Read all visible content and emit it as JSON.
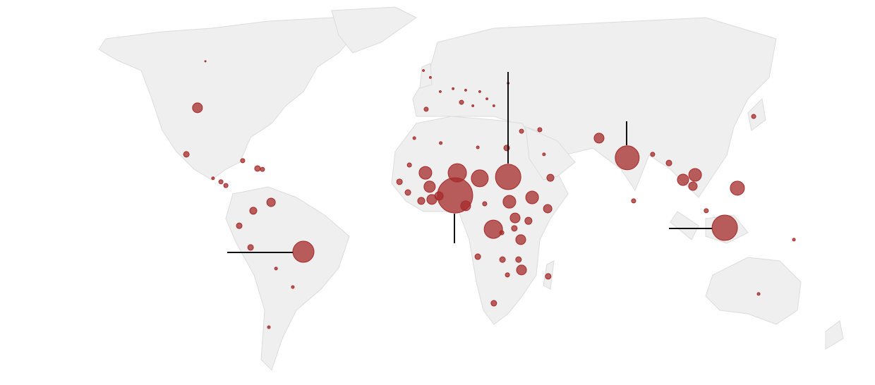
{
  "chart_data": {
    "type": "bubble",
    "color": "#a52a2a",
    "bubbles": [
      {
        "lon": -94.9,
        "lat": 39.3,
        "value": 49
      },
      {
        "lon": -99.4,
        "lat": 23.2,
        "value": 16
      },
      {
        "lon": 9.4,
        "lat": 9.0,
        "value": 625
      },
      {
        "lon": -52,
        "lat": -10.5,
        "value": 225
      },
      {
        "lon": 79.1,
        "lat": 22.0,
        "value": 289
      },
      {
        "lon": 118.6,
        "lat": -2.2,
        "value": 324
      },
      {
        "lon": 30.9,
        "lat": 15.4,
        "value": 324
      },
      {
        "lon": 40.6,
        "lat": 8.3,
        "value": 81
      },
      {
        "lon": 10.3,
        "lat": 16.8,
        "value": 169
      },
      {
        "lon": 19.4,
        "lat": 14.9,
        "value": 144
      },
      {
        "lon": -2.6,
        "lat": 16.8,
        "value": 81
      },
      {
        "lon": -0.9,
        "lat": 12.0,
        "value": 64
      },
      {
        "lon": 24.9,
        "lat": -2.7,
        "value": 169
      },
      {
        "lon": 31.4,
        "lat": 6.8,
        "value": 81
      },
      {
        "lon": 13.7,
        "lat": 5.4,
        "value": 49
      },
      {
        "lon": 33.7,
        "lat": 1.2,
        "value": 49
      },
      {
        "lon": 36,
        "lat": -6.3,
        "value": 49
      },
      {
        "lon": 39.1,
        "lat": 0.2,
        "value": 25
      },
      {
        "lon": 46.9,
        "lat": 4.4,
        "value": 36
      },
      {
        "lon": 48,
        "lat": 15.1,
        "value": 25
      },
      {
        "lon": 36.3,
        "lat": -16.8,
        "value": 49
      },
      {
        "lon": 35.1,
        "lat": -13.2,
        "value": 16
      },
      {
        "lon": 28.6,
        "lat": -13.2,
        "value": 16
      },
      {
        "lon": 18.6,
        "lat": -12.2,
        "value": 16
      },
      {
        "lon": 30.6,
        "lat": -18.5,
        "value": 9
      },
      {
        "lon": 25.1,
        "lat": -28.3,
        "value": 16
      },
      {
        "lon": 47.1,
        "lat": -19,
        "value": 16
      },
      {
        "lon": 21.4,
        "lat": 6.1,
        "value": 9
      },
      {
        "lon": 0,
        "lat": 7.6,
        "value": 49
      },
      {
        "lon": -4.3,
        "lat": 7.1,
        "value": 25
      },
      {
        "lon": 2.9,
        "lat": 8.8,
        "value": 36
      },
      {
        "lon": -9.7,
        "lat": 10,
        "value": 16
      },
      {
        "lon": -13.1,
        "lat": 13.7,
        "value": 16
      },
      {
        "lon": -9.1,
        "lat": 19.5,
        "value": 9
      },
      {
        "lon": 30.3,
        "lat": 25.4,
        "value": 16
      },
      {
        "lon": 67.7,
        "lat": 28.8,
        "value": 49
      },
      {
        "lon": 106.6,
        "lat": 16.1,
        "value": 81
      },
      {
        "lon": 101.7,
        "lat": 14.4,
        "value": 64
      },
      {
        "lon": 105.7,
        "lat": 12.2,
        "value": 36
      },
      {
        "lon": 123.7,
        "lat": 11.5,
        "value": 100
      },
      {
        "lon": 96,
        "lat": 20.2,
        "value": 16
      },
      {
        "lon": 89.4,
        "lat": 23.2,
        "value": 9
      },
      {
        "lon": 130.3,
        "lat": 36.3,
        "value": 9
      },
      {
        "lon": 81.7,
        "lat": 7.1,
        "value": 9
      },
      {
        "lon": 111.1,
        "lat": 3.7,
        "value": 9
      },
      {
        "lon": 132.3,
        "lat": -25.1,
        "value": 4
      },
      {
        "lon": 146.6,
        "lat": -6.3,
        "value": 4
      },
      {
        "lon": -65.1,
        "lat": 6.6,
        "value": 36
      },
      {
        "lon": -72.3,
        "lat": 3.7,
        "value": 25
      },
      {
        "lon": -78,
        "lat": -1.5,
        "value": 16
      },
      {
        "lon": -73.4,
        "lat": -9,
        "value": 16
      },
      {
        "lon": -63.1,
        "lat": -16.3,
        "value": 4
      },
      {
        "lon": -56.3,
        "lat": -22.7,
        "value": 4
      },
      {
        "lon": -66,
        "lat": -36.6,
        "value": 4
      },
      {
        "lon": -70.6,
        "lat": 18.3,
        "value": 16
      },
      {
        "lon": -76.6,
        "lat": 21,
        "value": 9
      },
      {
        "lon": -68.6,
        "lat": 18,
        "value": 9
      },
      {
        "lon": -83.4,
        "lat": 12.4,
        "value": 9
      },
      {
        "lon": -88.6,
        "lat": 14.9,
        "value": 4
      },
      {
        "lon": -85.4,
        "lat": 13.7,
        "value": 9
      },
      {
        "lon": -91.7,
        "lat": 55.4,
        "value": 1
      },
      {
        "lon": -2.3,
        "lat": 38.8,
        "value": 9
      },
      {
        "lon": 12,
        "lat": 41.2,
        "value": 9
      },
      {
        "lon": 3.6,
        "lat": 27.1,
        "value": 4
      },
      {
        "lon": 43.7,
        "lat": 31.7,
        "value": 9
      },
      {
        "lon": 36.3,
        "lat": 31.2,
        "value": 9
      },
      {
        "lon": 45.4,
        "lat": 23.2,
        "value": 4
      },
      {
        "lon": -7.1,
        "lat": 28.8,
        "value": 4
      },
      {
        "lon": 18.6,
        "lat": 25.6,
        "value": 4
      },
      {
        "lon": 33.4,
        "lat": -2.4,
        "value": 16
      },
      {
        "lon": 28.3,
        "lat": -3.9,
        "value": 9
      },
      {
        "lon": 3.4,
        "lat": 44.9,
        "value": 2
      },
      {
        "lon": 8.6,
        "lat": 45.9,
        "value": 2
      },
      {
        "lon": 13.7,
        "lat": 45.4,
        "value": 2
      },
      {
        "lon": 19.4,
        "lat": 44.9,
        "value": 2
      },
      {
        "lon": 22.3,
        "lat": 42.4,
        "value": 2
      },
      {
        "lon": 25.1,
        "lat": 40,
        "value": 2
      },
      {
        "lon": 16.6,
        "lat": 40,
        "value": 2
      },
      {
        "lon": 30.9,
        "lat": 47.8,
        "value": 2
      },
      {
        "lon": -3.4,
        "lat": 52.2,
        "value": 2
      },
      {
        "lon": -0.6,
        "lat": 49.8,
        "value": 2
      }
    ]
  }
}
